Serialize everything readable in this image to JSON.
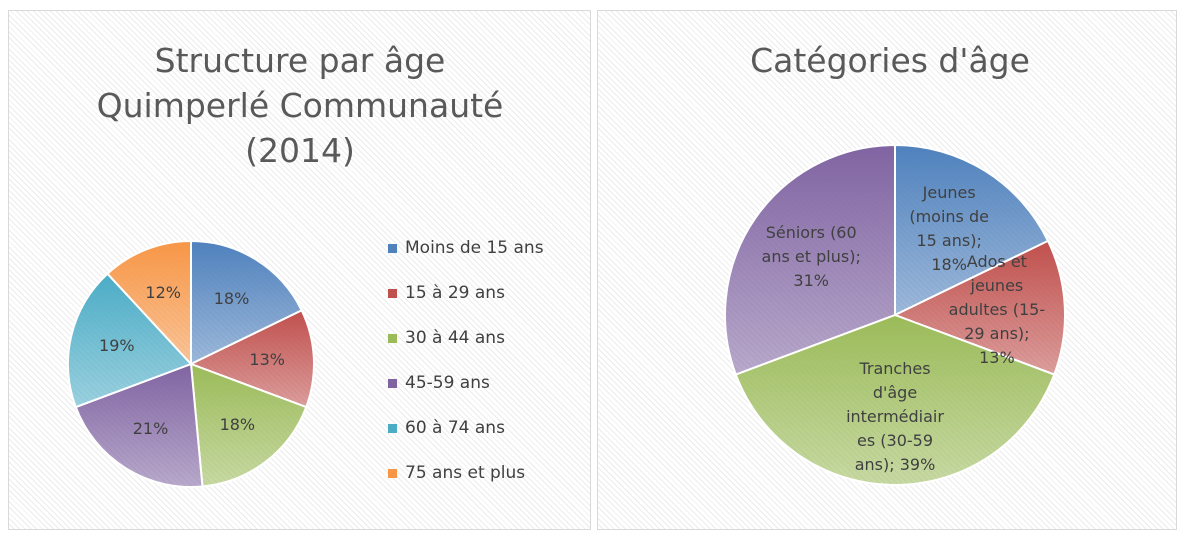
{
  "chart_data": [
    {
      "type": "pie",
      "title": "Structure par âge Quimperlé Communauté (2014)",
      "categories": [
        "Moins de 15 ans",
        "15 à 29 ans",
        "30 à 44 ans",
        "45-59 ans",
        "60 à 74 ans",
        "75 ans et plus"
      ],
      "values": [
        18,
        13,
        18,
        21,
        19,
        12
      ],
      "value_labels": [
        "18%",
        "13%",
        "18%",
        "21%",
        "19%",
        "12%"
      ],
      "colors": [
        "#4f81bd",
        "#c0504d",
        "#9bbb59",
        "#8064a2",
        "#4bacc6",
        "#f79646"
      ],
      "legend": "right"
    },
    {
      "type": "pie",
      "title": "Catégories d'âge",
      "categories": [
        "Jeunes (moins de 15 ans)",
        "Ados et jeunes adultes (15-29 ans)",
        "Tranches d'âge intermédiaires (30-59 ans)",
        "Séniors (60 ans et plus)"
      ],
      "values": [
        18,
        13,
        39,
        31
      ],
      "value_labels": [
        "Jeunes (moins de 15 ans); 18%",
        "Ados et jeunes adultes (15-29 ans); 13%",
        "Tranches d'âge intermédiaires (30-59 ans); 39%",
        "Séniors (60 ans et plus); 31%"
      ],
      "colors": [
        "#4f81bd",
        "#c0504d",
        "#9bbb59",
        "#8064a2"
      ]
    }
  ]
}
